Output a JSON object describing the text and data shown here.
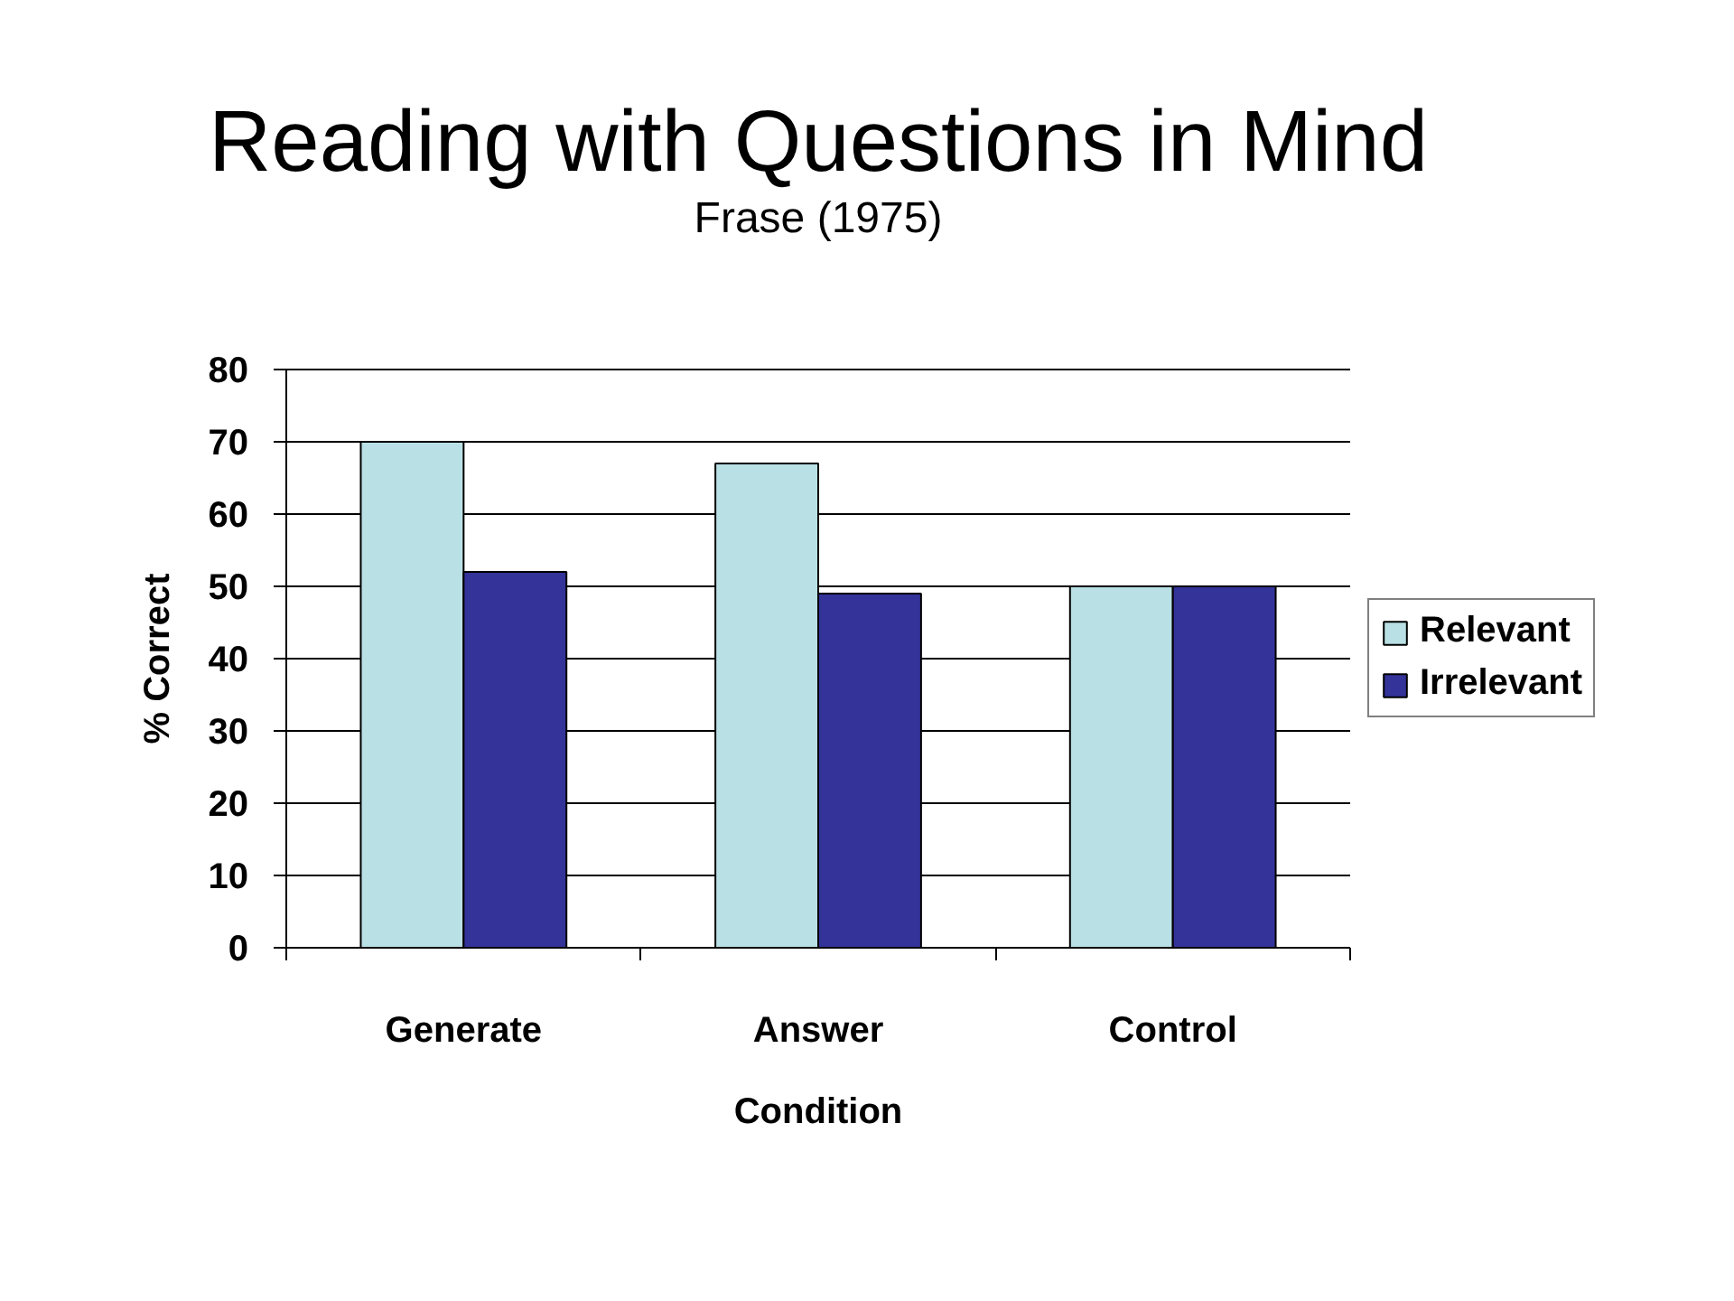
{
  "chart_data": {
    "type": "bar",
    "title": "Reading with Questions in Mind",
    "subtitle": "Frase (1975)",
    "xlabel": "Condition",
    "ylabel": "% Correct",
    "categories": [
      "Generate",
      "Answer",
      "Control"
    ],
    "series": [
      {
        "name": "Relevant",
        "color": "#b9e0e4",
        "values": [
          70,
          67,
          50
        ]
      },
      {
        "name": "Irrelevant",
        "color": "#333399",
        "values": [
          52,
          49,
          50
        ]
      }
    ],
    "ylim": [
      0,
      80
    ],
    "yticks": [
      0,
      10,
      20,
      30,
      40,
      50,
      60,
      70,
      80
    ],
    "grid": "y",
    "legend": "right"
  }
}
